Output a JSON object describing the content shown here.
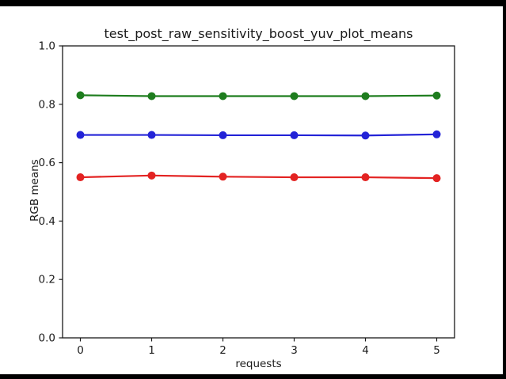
{
  "figure": {
    "background_color": "#ffffff",
    "letterbox_color": "#000000",
    "spine_color": "#1a1a1a",
    "text_color": "#1a1a1a"
  },
  "chart_data": {
    "type": "line",
    "title": "test_post_raw_sensitivity_boost_yuv_plot_means",
    "xlabel": "requests",
    "ylabel": "RGB means",
    "x": [
      0,
      1,
      2,
      3,
      4,
      5
    ],
    "series": [
      {
        "name": "green-series",
        "color": "#1e7d1e",
        "values": [
          0.831,
          0.828,
          0.828,
          0.828,
          0.828,
          0.83
        ]
      },
      {
        "name": "blue-series",
        "color": "#2323d7",
        "values": [
          0.695,
          0.695,
          0.694,
          0.694,
          0.693,
          0.697
        ]
      },
      {
        "name": "red-series",
        "color": "#e32322",
        "values": [
          0.55,
          0.556,
          0.552,
          0.55,
          0.55,
          0.547
        ]
      }
    ],
    "xlim": [
      -0.25,
      5.25
    ],
    "ylim": [
      0.0,
      1.0
    ],
    "xticks": [
      0,
      1,
      2,
      3,
      4,
      5
    ],
    "xtick_labels": [
      "0",
      "1",
      "2",
      "3",
      "4",
      "5"
    ],
    "yticks": [
      0.0,
      0.2,
      0.4,
      0.6,
      0.8,
      1.0
    ],
    "ytick_labels": [
      "0.0",
      "0.2",
      "0.4",
      "0.6",
      "0.8",
      "1.0"
    ],
    "grid": false,
    "legend": null,
    "marker": "circle"
  }
}
